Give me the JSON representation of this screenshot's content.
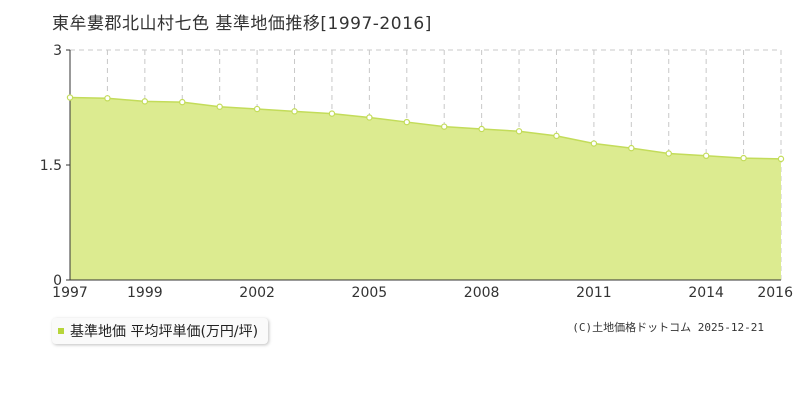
{
  "chart_data": {
    "type": "area",
    "title": "東牟婁郡北山村七色 基準地価推移[1997-2016]",
    "x": [
      1997,
      1998,
      1999,
      2000,
      2001,
      2002,
      2003,
      2004,
      2005,
      2006,
      2007,
      2008,
      2009,
      2010,
      2011,
      2012,
      2013,
      2014,
      2015,
      2016
    ],
    "x_tick_labels": [
      "1997",
      "1999",
      "2002",
      "2005",
      "2008",
      "2011",
      "2014",
      "2016"
    ],
    "x_tick_values": [
      1997,
      1999,
      2002,
      2005,
      2008,
      2011,
      2014,
      2016
    ],
    "series": [
      {
        "name": "基準地価 平均坪単価(万円/坪)",
        "values": [
          2.38,
          2.37,
          2.33,
          2.32,
          2.26,
          2.23,
          2.2,
          2.17,
          2.12,
          2.06,
          2.0,
          1.97,
          1.94,
          1.88,
          1.78,
          1.72,
          1.65,
          1.62,
          1.59,
          1.58
        ]
      }
    ],
    "y_tick_labels": [
      "0",
      "1.5",
      "3"
    ],
    "y_tick_values": [
      0,
      1.5,
      3
    ],
    "ylim": [
      0,
      3
    ],
    "xlim": [
      1997,
      2016
    ],
    "grid": true,
    "colors": {
      "fill": "#dceb90",
      "line": "#c3dc5a",
      "marker_fill": "#ffffff",
      "grid": "#c8c8c8",
      "swatch": "#b7d53a"
    }
  },
  "legend": {
    "label": "基準地価 平均坪単価(万円/坪)"
  },
  "credit": "(C)土地価格ドットコム 2025-12-21"
}
